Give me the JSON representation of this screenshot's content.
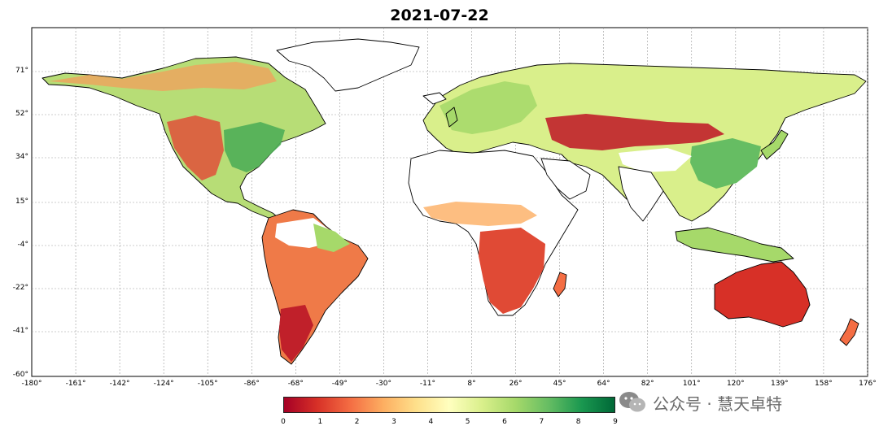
{
  "title": "2021-07-22",
  "colors": {
    "ocean": "#ffffff",
    "coast": "#000000",
    "grid": "#999999",
    "scale": [
      "#a50026",
      "#d73027",
      "#f46d43",
      "#fdae61",
      "#fee08b",
      "#ffffbf",
      "#d9ef8b",
      "#a6d96a",
      "#66bd63",
      "#1a9850",
      "#006837"
    ]
  },
  "axes": {
    "lat_ticks": [
      "71°",
      "52°",
      "34°",
      "15°",
      "-4°",
      "-22°",
      "-41°",
      "-60°"
    ],
    "lon_ticks": [
      "-180°",
      "-161°",
      "-142°",
      "-124°",
      "-105°",
      "-86°",
      "-68°",
      "-49°",
      "-30°",
      "-11°",
      "8°",
      "26°",
      "45°",
      "64°",
      "82°",
      "101°",
      "120°",
      "139°",
      "158°",
      "176°"
    ]
  },
  "colorbar": {
    "min": 0,
    "max": 9,
    "ticks": [
      "0",
      "1",
      "2",
      "3",
      "4",
      "5",
      "6",
      "7",
      "8",
      "9"
    ]
  },
  "watermark": {
    "icon": "wechat-icon",
    "text": "公众号 · 慧天卓特"
  }
}
